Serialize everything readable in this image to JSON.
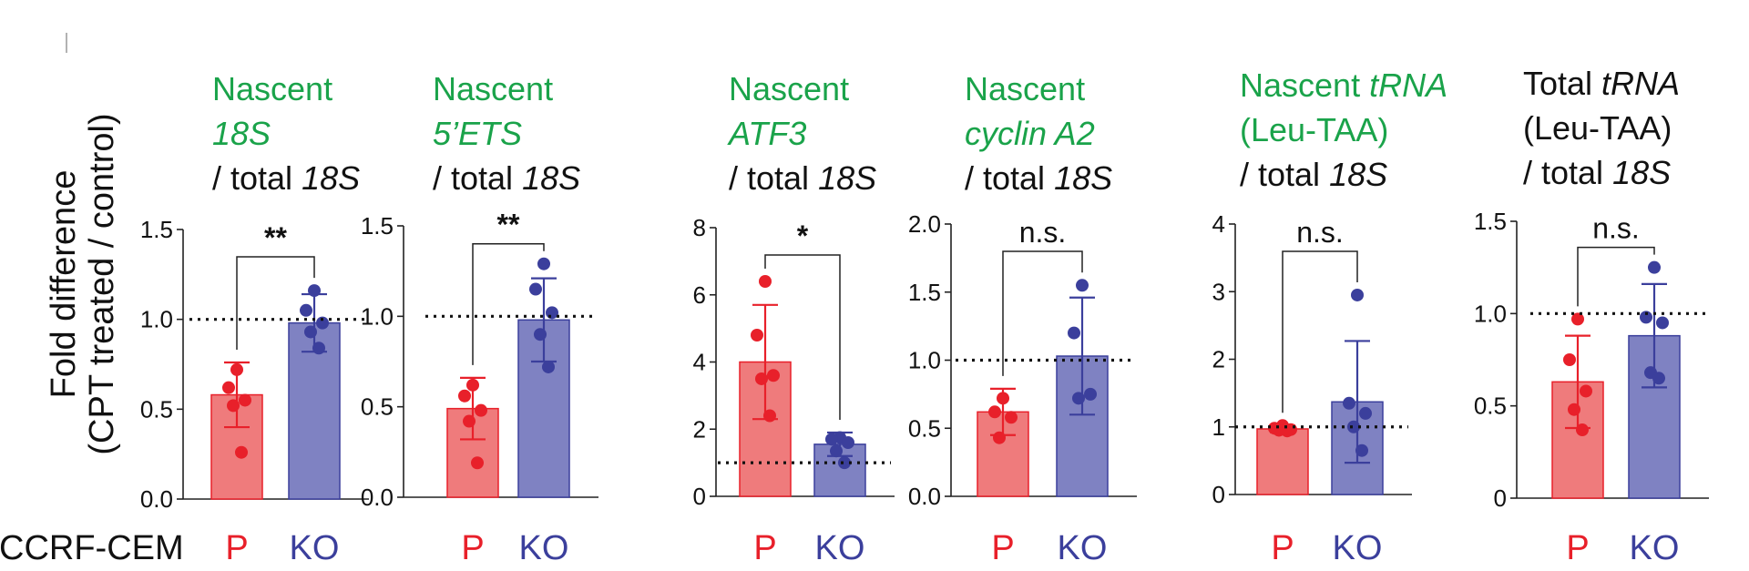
{
  "figure": {
    "ylabel_line1": "Fold difference",
    "ylabel_line2": "(CPT treated / control)",
    "row_label": "CCRF-CEM",
    "colors": {
      "green": "#1aa34a",
      "black": "#111111",
      "p_fill": "#ef7b7c",
      "p_edge": "#e8202a",
      "p_dot": "#e8202a",
      "ko_fill": "#7f82c2",
      "ko_edge": "#3b3f9c",
      "ko_dot": "#3b3f9c"
    }
  },
  "chart_data": [
    {
      "type": "bar",
      "title_lines": [
        [
          {
            "text": "Nascent",
            "italic": false,
            "color": "green"
          }
        ],
        [
          {
            "text": "18S",
            "italic": true,
            "color": "green"
          }
        ],
        [
          {
            "text": "/ total ",
            "italic": false,
            "color": "black"
          },
          {
            "text": "18S",
            "italic": true,
            "color": "black"
          }
        ]
      ],
      "categories": [
        "P",
        "KO"
      ],
      "values": [
        0.58,
        0.98
      ],
      "sd": [
        0.18,
        0.16
      ],
      "points": [
        [
          0.72,
          0.62,
          0.55,
          0.52,
          0.26
        ],
        [
          1.16,
          1.05,
          0.98,
          0.93,
          0.84
        ]
      ],
      "yticks": [
        "0.0",
        "0.5",
        "1.0",
        "1.5"
      ],
      "ytick_values": [
        0,
        0.5,
        1.0,
        1.5
      ],
      "ylim": [
        0,
        1.5
      ],
      "reference_line": 1.0,
      "significance": "**"
    },
    {
      "type": "bar",
      "title_lines": [
        [
          {
            "text": "Nascent",
            "italic": false,
            "color": "green"
          }
        ],
        [
          {
            "text": "5’ETS",
            "italic": true,
            "color": "green"
          }
        ],
        [
          {
            "text": "/ total ",
            "italic": false,
            "color": "black"
          },
          {
            "text": "18S",
            "italic": true,
            "color": "black"
          }
        ]
      ],
      "categories": [
        "P",
        "KO"
      ],
      "values": [
        0.49,
        0.98
      ],
      "sd": [
        0.17,
        0.23
      ],
      "points": [
        [
          0.62,
          0.56,
          0.48,
          0.42,
          0.19
        ],
        [
          1.29,
          1.15,
          1.02,
          0.9,
          0.72
        ]
      ],
      "yticks": [
        "0.0",
        "0.5",
        "1.0",
        "1.5"
      ],
      "ytick_values": [
        0,
        0.5,
        1.0,
        1.5
      ],
      "ylim": [
        0,
        1.5
      ],
      "reference_line": 1.0,
      "significance": "**"
    },
    {
      "type": "bar",
      "title_lines": [
        [
          {
            "text": "Nascent",
            "italic": false,
            "color": "green"
          }
        ],
        [
          {
            "text": "ATF3",
            "italic": true,
            "color": "green"
          }
        ],
        [
          {
            "text": "/ total ",
            "italic": false,
            "color": "black"
          },
          {
            "text": "18S",
            "italic": true,
            "color": "black"
          }
        ]
      ],
      "categories": [
        "P",
        "KO"
      ],
      "values": [
        4.0,
        1.55
      ],
      "sd": [
        1.7,
        0.35
      ],
      "points": [
        [
          6.4,
          4.8,
          3.6,
          3.5,
          2.4
        ],
        [
          1.75,
          1.7,
          1.6,
          1.35,
          1.0
        ]
      ],
      "yticks": [
        "0",
        "2",
        "4",
        "6",
        "8"
      ],
      "ytick_values": [
        0,
        2,
        4,
        6,
        8
      ],
      "ylim": [
        0,
        8
      ],
      "reference_line": 1.0,
      "significance": "*"
    },
    {
      "type": "bar",
      "title_lines": [
        [
          {
            "text": "Nascent",
            "italic": false,
            "color": "green"
          }
        ],
        [
          {
            "text": "cyclin A2",
            "italic": true,
            "color": "green"
          }
        ],
        [
          {
            "text": "/ total ",
            "italic": false,
            "color": "black"
          },
          {
            "text": "18S",
            "italic": true,
            "color": "black"
          }
        ]
      ],
      "categories": [
        "P",
        "KO"
      ],
      "values": [
        0.62,
        1.03
      ],
      "sd": [
        0.17,
        0.43
      ],
      "points": [
        [
          0.72,
          0.62,
          0.58,
          0.43
        ],
        [
          1.55,
          1.2,
          0.75,
          0.72
        ]
      ],
      "yticks": [
        "0.0",
        "0.5",
        "1.0",
        "1.5",
        "2.0"
      ],
      "ytick_values": [
        0,
        0.5,
        1.0,
        1.5,
        2.0
      ],
      "ylim": [
        0,
        2.0
      ],
      "reference_line": 1.0,
      "significance": "n.s."
    },
    {
      "type": "bar",
      "title_lines": [
        [
          {
            "text": "Nascent ",
            "italic": false,
            "color": "green"
          },
          {
            "text": "tRNA",
            "italic": true,
            "color": "green"
          }
        ],
        [
          {
            "text": "(Leu-TAA)",
            "italic": false,
            "color": "green"
          }
        ],
        [
          {
            "text": "/ total ",
            "italic": false,
            "color": "black"
          },
          {
            "text": "18S",
            "italic": true,
            "color": "black"
          }
        ]
      ],
      "categories": [
        "P",
        "KO"
      ],
      "values": [
        0.97,
        1.37
      ],
      "sd": [
        0.05,
        0.9
      ],
      "points": [
        [
          1.02,
          0.98,
          0.96,
          0.95,
          0.94
        ],
        [
          2.95,
          1.35,
          1.2,
          1.0,
          0.65
        ]
      ],
      "yticks": [
        "0",
        "1",
        "2",
        "3",
        "4"
      ],
      "ytick_values": [
        0,
        1,
        2,
        3,
        4
      ],
      "ylim": [
        0,
        4
      ],
      "reference_line": 1.0,
      "significance": "n.s."
    },
    {
      "type": "bar",
      "title_lines": [
        [
          {
            "text": "Total ",
            "italic": false,
            "color": "black"
          },
          {
            "text": "tRNA",
            "italic": true,
            "color": "black"
          }
        ],
        [
          {
            "text": "(Leu-TAA)",
            "italic": false,
            "color": "black"
          }
        ],
        [
          {
            "text": "/ total ",
            "italic": false,
            "color": "black"
          },
          {
            "text": "18S",
            "italic": true,
            "color": "black"
          }
        ]
      ],
      "categories": [
        "P",
        "KO"
      ],
      "values": [
        0.63,
        0.88
      ],
      "sd": [
        0.25,
        0.28
      ],
      "points": [
        [
          0.97,
          0.75,
          0.58,
          0.48,
          0.37
        ],
        [
          1.25,
          0.98,
          0.95,
          0.68,
          0.65
        ]
      ],
      "yticks": [
        "0",
        "0.5",
        "1.0",
        "1.5"
      ],
      "ytick_values": [
        0,
        0.5,
        1.0,
        1.5
      ],
      "ylim": [
        0,
        1.5
      ],
      "reference_line": 1.0,
      "significance": "n.s."
    }
  ]
}
